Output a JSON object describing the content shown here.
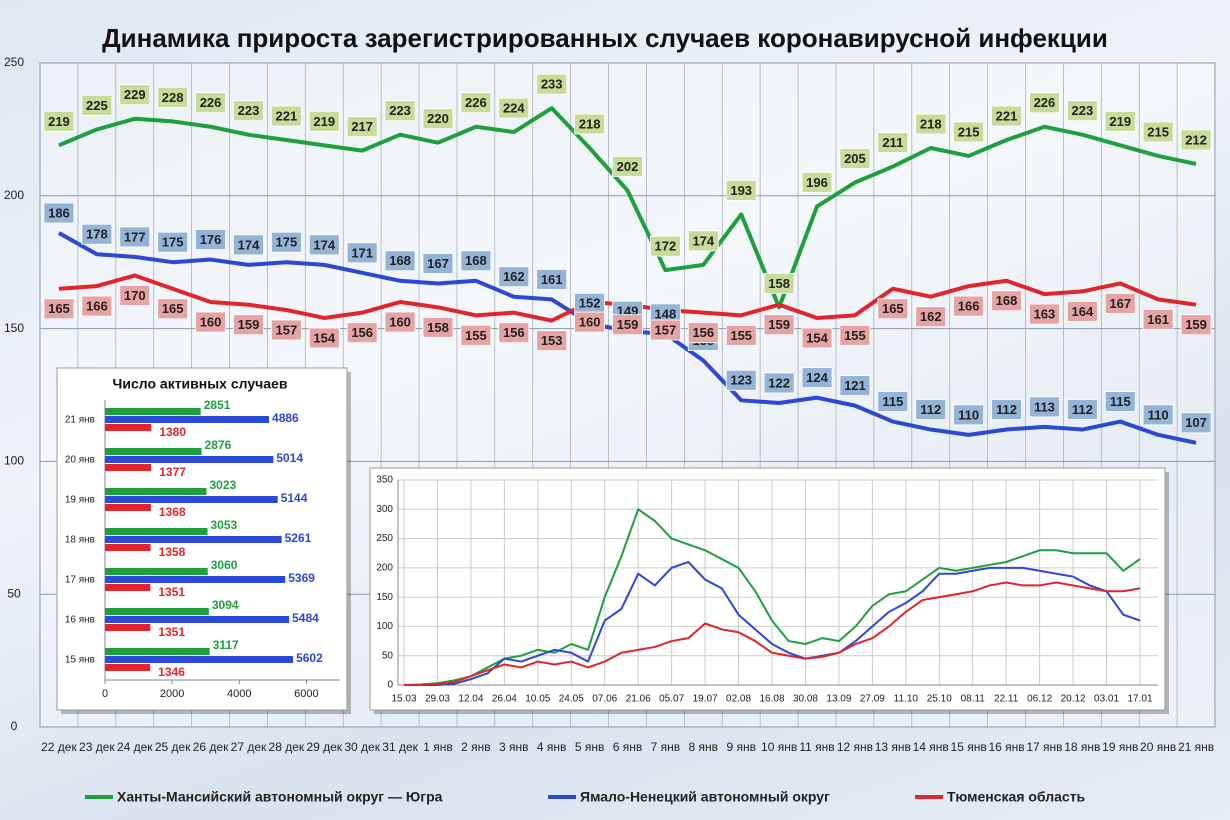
{
  "chart_data": [
    {
      "type": "line",
      "title": "Динамика прироста зарегистрированных случаев коронавирусной инфекции",
      "categories": [
        "22 дек",
        "23 дек",
        "24 дек",
        "25 дек",
        "26 дек",
        "27 дек",
        "28 дек",
        "29 дек",
        "30 дек",
        "31 дек",
        "1 янв",
        "2 янв",
        "3 янв",
        "4 янв",
        "5 янв",
        "6 янв",
        "7 янв",
        "8 янв",
        "9 янв",
        "10 янв",
        "11 янв",
        "12 янв",
        "13 янв",
        "14 янв",
        "15 янв",
        "16 янв",
        "17 янв",
        "18 янв",
        "19 янв",
        "20 янв",
        "21 янв"
      ],
      "series": [
        {
          "name": "Ханты-Мансийский автономный округ — Югра",
          "color": "#1fa03c",
          "label_color": "#c6dc98",
          "values": [
            219,
            225,
            229,
            228,
            226,
            223,
            221,
            219,
            217,
            223,
            220,
            226,
            224,
            233,
            218,
            202,
            172,
            174,
            193,
            158,
            196,
            205,
            211,
            218,
            215,
            221,
            226,
            223,
            219,
            215,
            212
          ]
        },
        {
          "name": "Ямало-Ненецкий автономный округ",
          "color": "#2b48d6",
          "label_color": "#95b3d7",
          "values": [
            186,
            178,
            177,
            175,
            176,
            174,
            175,
            174,
            171,
            168,
            167,
            168,
            162,
            161,
            152,
            149,
            148,
            138,
            123,
            122,
            124,
            121,
            115,
            112,
            110,
            112,
            113,
            112,
            115,
            110,
            107
          ]
        },
        {
          "name": "Тюменская область",
          "color": "#e0262a",
          "label_color": "#e6a3a3",
          "values": [
            165,
            166,
            170,
            165,
            160,
            159,
            157,
            154,
            156,
            160,
            158,
            155,
            156,
            153,
            160,
            159,
            157,
            156,
            155,
            159,
            154,
            155,
            165,
            162,
            166,
            168,
            163,
            164,
            167,
            161,
            159
          ]
        }
      ],
      "ylim": [
        0,
        250
      ],
      "yticks": [
        0,
        50,
        100,
        150,
        200,
        250
      ],
      "grid": true
    },
    {
      "type": "hbar",
      "title": "Число активных случаев",
      "categories": [
        "21 янв",
        "20 янв",
        "19 янв",
        "18 янв",
        "17 янв",
        "16 янв",
        "15 янв"
      ],
      "series": [
        {
          "color": "#1fa03c",
          "values": [
            2851,
            2876,
            3023,
            3053,
            3060,
            3094,
            3117
          ]
        },
        {
          "color": "#2b48d6",
          "values": [
            4886,
            5014,
            5144,
            5261,
            5369,
            5484,
            5602
          ]
        },
        {
          "color": "#e0262a",
          "values": [
            1380,
            1377,
            1368,
            1358,
            1351,
            1351,
            1346
          ]
        }
      ],
      "xlim": [
        0,
        7000
      ],
      "xticks": [
        0,
        2000,
        4000,
        6000
      ]
    },
    {
      "type": "line",
      "categories": [
        "15.03",
        null,
        "29.03",
        null,
        "12.04",
        null,
        "26.04",
        null,
        "10.05",
        null,
        "24.05",
        null,
        "07.06",
        null,
        "21.06",
        null,
        "05.07",
        null,
        "19.07",
        null,
        "02.08",
        null,
        "16.08",
        null,
        "30.08",
        null,
        "13.09",
        null,
        "27.09",
        null,
        "11.10",
        null,
        "25.10",
        null,
        "08.11",
        null,
        "22.11",
        null,
        "06.12",
        null,
        "20.12",
        null,
        "03.01",
        null,
        "17.01"
      ],
      "series": [
        {
          "color": "#1fa03c",
          "values": [
            0,
            1,
            3,
            8,
            15,
            30,
            45,
            50,
            60,
            55,
            70,
            60,
            150,
            220,
            300,
            280,
            250,
            240,
            230,
            215,
            200,
            160,
            110,
            75,
            70,
            80,
            75,
            100,
            135,
            155,
            160,
            180,
            200,
            195,
            200,
            205,
            210,
            220,
            230,
            230,
            225,
            225,
            225,
            195,
            215
          ]
        },
        {
          "color": "#2b48d6",
          "values": [
            0,
            0,
            0,
            2,
            10,
            20,
            45,
            40,
            50,
            60,
            55,
            40,
            110,
            130,
            190,
            170,
            200,
            210,
            180,
            165,
            120,
            95,
            70,
            55,
            45,
            50,
            55,
            75,
            100,
            125,
            140,
            160,
            190,
            190,
            195,
            200,
            200,
            200,
            195,
            190,
            185,
            170,
            160,
            120,
            110
          ]
        },
        {
          "color": "#e0262a",
          "values": [
            0,
            0,
            2,
            5,
            15,
            25,
            35,
            30,
            40,
            35,
            40,
            30,
            40,
            55,
            60,
            65,
            75,
            80,
            105,
            95,
            90,
            75,
            55,
            50,
            45,
            48,
            55,
            70,
            80,
            100,
            125,
            145,
            150,
            155,
            160,
            170,
            175,
            170,
            170,
            175,
            170,
            165,
            160,
            160,
            165
          ]
        }
      ],
      "ylim": [
        0,
        350
      ],
      "yticks": [
        0,
        50,
        100,
        150,
        200,
        250,
        300,
        350
      ],
      "grid": true
    }
  ]
}
